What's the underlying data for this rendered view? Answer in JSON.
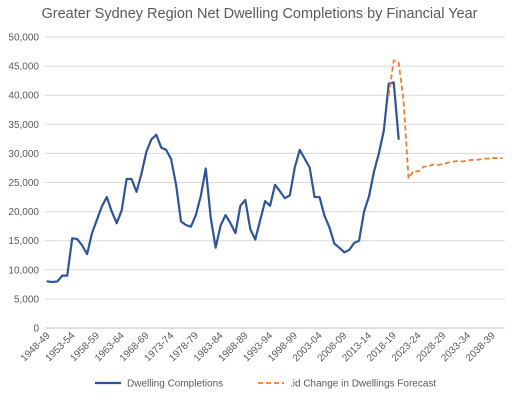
{
  "chart_data": {
    "type": "line",
    "title": "Greater Sydney Region Net Dwelling Completions by Financial Year",
    "xlabel": "",
    "ylabel": "",
    "ylim": [
      0,
      50000
    ],
    "y_ticks": [
      0,
      5000,
      10000,
      15000,
      20000,
      25000,
      30000,
      35000,
      40000,
      45000,
      50000
    ],
    "y_tick_labels": [
      "0",
      "5,000",
      "10,000",
      "15,000",
      "20,000",
      "25,000",
      "30,000",
      "35,000",
      "40,000",
      "45,000",
      "50,000"
    ],
    "grid": true,
    "legend_position": "bottom",
    "x_tick_labels": [
      "1948-49",
      "1953-54",
      "1958-59",
      "1963-64",
      "1968-69",
      "1973-74",
      "1978-79",
      "1983-84",
      "1988-89",
      "1993-94",
      "1998-99",
      "2003-04",
      "2008-09",
      "2013-14",
      "2018-19",
      "2023-24",
      "2028-29",
      "2033-34",
      "2038-39"
    ],
    "categories": [
      "1948-49",
      "1949-50",
      "1950-51",
      "1951-52",
      "1952-53",
      "1953-54",
      "1954-55",
      "1955-56",
      "1956-57",
      "1957-58",
      "1958-59",
      "1959-60",
      "1960-61",
      "1961-62",
      "1962-63",
      "1963-64",
      "1964-65",
      "1965-66",
      "1966-67",
      "1967-68",
      "1968-69",
      "1969-70",
      "1970-71",
      "1971-72",
      "1972-73",
      "1973-74",
      "1974-75",
      "1975-76",
      "1976-77",
      "1977-78",
      "1978-79",
      "1979-80",
      "1980-81",
      "1981-82",
      "1982-83",
      "1983-84",
      "1984-85",
      "1985-86",
      "1986-87",
      "1987-88",
      "1988-89",
      "1989-90",
      "1990-91",
      "1991-92",
      "1992-93",
      "1993-94",
      "1994-95",
      "1995-96",
      "1996-97",
      "1997-98",
      "1998-99",
      "1999-00",
      "2000-01",
      "2001-02",
      "2002-03",
      "2003-04",
      "2004-05",
      "2005-06",
      "2006-07",
      "2007-08",
      "2008-09",
      "2009-10",
      "2010-11",
      "2011-12",
      "2012-13",
      "2013-14",
      "2014-15",
      "2015-16",
      "2016-17",
      "2017-18",
      "2018-19",
      "2019-20",
      "2020-21",
      "2021-22",
      "2022-23",
      "2023-24",
      "2024-25",
      "2025-26",
      "2026-27",
      "2027-28",
      "2028-29",
      "2029-30",
      "2030-31",
      "2031-32",
      "2032-33",
      "2033-34",
      "2034-35",
      "2035-36",
      "2036-37",
      "2037-38",
      "2038-39",
      "2039-40",
      "2040-41"
    ],
    "series": [
      {
        "name": "Dwelling Completions",
        "color": "#2F5597",
        "style": "solid",
        "values": [
          8000,
          7900,
          8000,
          9000,
          9000,
          15400,
          15300,
          14200,
          12700,
          16300,
          18600,
          20900,
          22500,
          20000,
          18000,
          20200,
          25600,
          25600,
          23400,
          26500,
          30300,
          32400,
          33200,
          31000,
          30600,
          29000,
          24600,
          18300,
          17700,
          17400,
          19400,
          22700,
          27400,
          19000,
          13800,
          17600,
          19400,
          18000,
          16300,
          21000,
          22000,
          17000,
          15200,
          18500,
          21800,
          21000,
          24600,
          23500,
          22300,
          22800,
          27600,
          30600,
          29100,
          27600,
          22500,
          22500,
          19300,
          17300,
          14500,
          13800,
          13000,
          13400,
          14600,
          15000,
          20000,
          22600,
          26800,
          30000,
          33900,
          42000,
          42200,
          32500,
          null,
          null,
          null,
          null,
          null,
          null,
          null,
          null,
          null,
          null,
          null,
          null,
          null,
          null,
          null,
          null,
          null,
          null,
          null,
          null,
          null
        ]
      },
      {
        "name": ".id Change in Dwellings Forecast",
        "color": "#ED7D31",
        "style": "dashed",
        "values": [
          null,
          null,
          null,
          null,
          null,
          null,
          null,
          null,
          null,
          null,
          null,
          null,
          null,
          null,
          null,
          null,
          null,
          null,
          null,
          null,
          null,
          null,
          null,
          null,
          null,
          null,
          null,
          null,
          null,
          null,
          null,
          null,
          null,
          null,
          null,
          null,
          null,
          null,
          null,
          null,
          null,
          null,
          null,
          null,
          null,
          null,
          null,
          null,
          null,
          null,
          null,
          null,
          null,
          null,
          null,
          null,
          null,
          null,
          null,
          null,
          null,
          null,
          null,
          null,
          null,
          null,
          null,
          null,
          null,
          40000,
          46000,
          45600,
          39000,
          25700,
          27000,
          26900,
          27700,
          27800,
          28100,
          28000,
          28200,
          28400,
          28600,
          28700,
          28600,
          28800,
          28900,
          28900,
          29100,
          29100,
          29200,
          29200,
          29200
        ]
      }
    ]
  }
}
